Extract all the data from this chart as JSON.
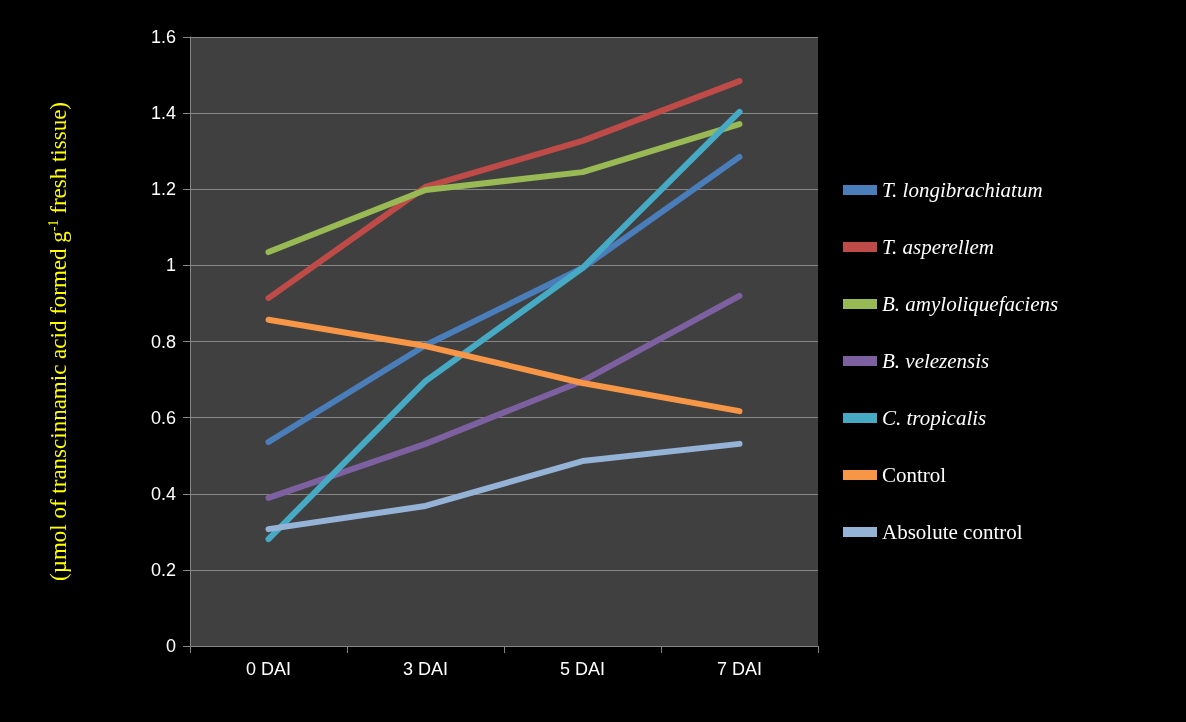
{
  "chart_data": {
    "type": "line",
    "ylabel": "(µmol of transcinnamic acid formed g$^{-1}$ fresh tissue)",
    "categories": [
      "0 DAI",
      "3 DAI",
      "5 DAI",
      "7 DAI"
    ],
    "series": [
      {
        "name": "T. longibrachiatum",
        "color": "#4a7ebb",
        "values": [
          0.536,
          0.79,
          0.993,
          1.285
        ]
      },
      {
        "name": "T. asperellem",
        "color": "#be4b48",
        "values": [
          0.914,
          1.206,
          1.327,
          1.484
        ]
      },
      {
        "name": "B. amyloliquefaciens",
        "color": "#98b954",
        "values": [
          1.035,
          1.198,
          1.245,
          1.371
        ]
      },
      {
        "name": "B. velezensis",
        "color": "#7d60a0",
        "values": [
          0.389,
          0.531,
          0.696,
          0.92
        ]
      },
      {
        "name": "C. tropicalis",
        "color": "#46aac5",
        "values": [
          0.281,
          0.696,
          0.993,
          1.403
        ]
      },
      {
        "name": "Control",
        "color": "#f79646",
        "values": [
          0.857,
          0.788,
          0.691,
          0.617
        ]
      },
      {
        "name": "Absolute control",
        "color": "#95b3d7",
        "values": [
          0.307,
          0.368,
          0.486,
          0.531
        ]
      }
    ],
    "ylim": [
      0,
      1.6
    ],
    "yticks": [
      0,
      0.2,
      0.4,
      0.6,
      0.8,
      1,
      1.2,
      1.4,
      1.6
    ],
    "grid": "y",
    "legend": "right",
    "marker": "none",
    "line_style": "solid"
  }
}
